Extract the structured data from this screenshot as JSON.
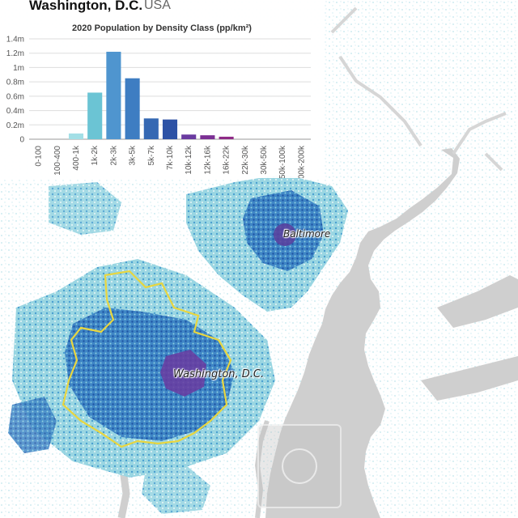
{
  "header": {
    "city": "Washington, D.C.",
    "country": "USA"
  },
  "map": {
    "labels": {
      "washington": "Washington, D.C.",
      "baltimore": "Baltimore"
    },
    "colors": {
      "water": "#cfcfcf",
      "low": "#a8dde6",
      "mid": "#4a9fd0",
      "high": "#1f55a5",
      "very_high": "#7a2a88",
      "boundary": "#e8d640"
    }
  },
  "chart_data": {
    "type": "bar",
    "title": "2020 Population by Density Class (pp/km²)",
    "categories": [
      "0-100",
      "100-400",
      "400-1k",
      "1k-2k",
      "2k-3k",
      "3k-5k",
      "5k-7k",
      "7k-10k",
      "10k-12k",
      "12k-16k",
      "16k-22k",
      "22k-30k",
      "30k-50k",
      "50k-100k",
      "100k-200k"
    ],
    "values": [
      0,
      0,
      80000,
      650000,
      1220000,
      850000,
      290000,
      275000,
      65000,
      55000,
      35000,
      0,
      0,
      0,
      0
    ],
    "colors": [
      "#c7e9ef",
      "#c7e9ef",
      "#a3dfe6",
      "#6bc4d4",
      "#4f95cf",
      "#3e7dc2",
      "#3568b3",
      "#2d52a5",
      "#6a3ba0",
      "#7b3094",
      "#8e2a86",
      "#9a2570",
      "#a52060",
      "#b01b50",
      "#b81040"
    ],
    "ylim": [
      0,
      1400000
    ],
    "yticks": [
      0,
      200000,
      400000,
      600000,
      800000,
      1000000,
      1200000,
      1400000
    ],
    "ytick_labels": [
      "0",
      "0.2m",
      "0.4m",
      "0.6m",
      "0.8m",
      "1m",
      "1.2m",
      "1.4m"
    ],
    "grid": true,
    "xlabel": "",
    "ylabel": ""
  }
}
